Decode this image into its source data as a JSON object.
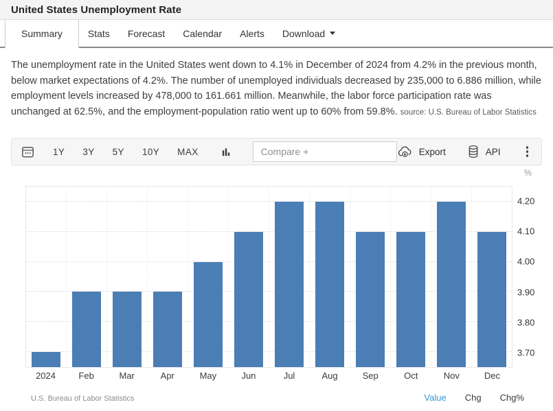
{
  "page": {
    "title": "United States Unemployment Rate"
  },
  "tabs": [
    {
      "label": "Summary",
      "active": true
    },
    {
      "label": "Stats"
    },
    {
      "label": "Forecast"
    },
    {
      "label": "Calendar"
    },
    {
      "label": "Alerts"
    },
    {
      "label": "Download"
    }
  ],
  "summary": {
    "text": "The unemployment rate in the United States went down to 4.1% in December of 2024 from 4.2% in the previous month, below market expectations of 4.2%. The number of unemployed individuals decreased by 235,000 to 6.886 million, while employment levels increased by 478,000 to 161.661 million. Meanwhile, the labor force participation rate was unchanged at 62.5%, and the employment-population ratio went up to 60% from 59.8%.",
    "source": "source: U.S. Bureau of Labor Statistics"
  },
  "toolbar": {
    "ranges": [
      "1Y",
      "3Y",
      "5Y",
      "10Y",
      "MAX"
    ],
    "compare_placeholder": "Compare +",
    "export_label": "Export",
    "api_label": "API"
  },
  "icons": {
    "calendar": "calendar-grid-outline",
    "chart_type": "three-vertical-bars",
    "export": "cloud-with-down-arrow",
    "api": "database-cylinder",
    "more": "vertical-ellipsis",
    "download_caret": "caret-down"
  },
  "chart_data": {
    "type": "bar",
    "title": "United States Unemployment Rate",
    "unit": "%",
    "categories": [
      "2024",
      "Feb",
      "Mar",
      "Apr",
      "May",
      "Jun",
      "Jul",
      "Aug",
      "Sep",
      "Oct",
      "Nov",
      "Dec"
    ],
    "values": [
      3.7,
      3.9,
      3.9,
      3.9,
      4.0,
      4.1,
      4.2,
      4.2,
      4.1,
      4.1,
      4.2,
      4.1
    ],
    "yticks": [
      "4.20",
      "4.10",
      "4.00",
      "3.90",
      "3.80",
      "3.70"
    ],
    "ylim": [
      3.65,
      4.25
    ],
    "grid": "dotted",
    "legend_position": "bottom-right",
    "bar_color": "#4a7eb5",
    "source": "U.S. Bureau of Labor Statistics"
  },
  "chart_footer": {
    "source": "U.S. Bureau of Labor Statistics",
    "columns": [
      "Value",
      "Chg",
      "Chg%"
    ]
  },
  "colors": {
    "bar": "#4a7eb5",
    "accent_blue": "#3598d4",
    "tab_divider": "#8a8a8a",
    "toolbar_bg": "#f6f6f6"
  }
}
